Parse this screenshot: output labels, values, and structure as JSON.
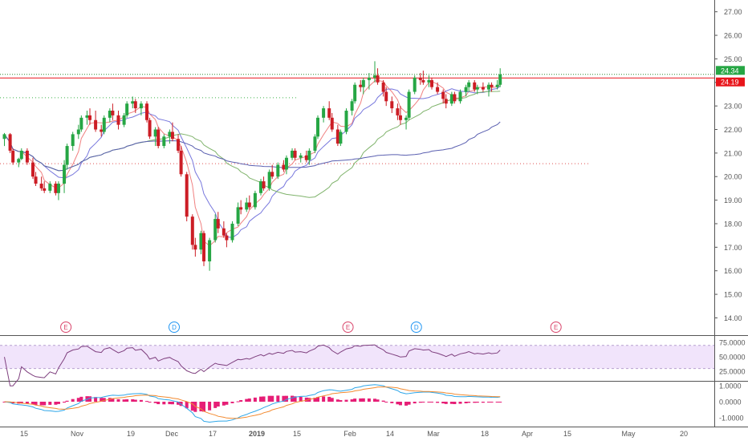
{
  "chart_data": {
    "type": "candlestick",
    "price_axis": {
      "ylim": [
        13.3,
        27.5
      ],
      "tick_values": [
        14,
        15,
        16,
        17,
        18,
        19,
        20,
        21,
        22,
        23,
        24,
        25,
        26,
        27
      ],
      "tick_labels": [
        "14.00",
        "15.00",
        "16.00",
        "17.00",
        "18.00",
        "19.00",
        "20.00",
        "21.00",
        "22.00",
        "23.00",
        "24.00",
        "25.00",
        "26.00",
        "27.00"
      ]
    },
    "price_labels": [
      {
        "text": "24.34",
        "value": 24.34,
        "color": "#26a644"
      },
      {
        "text": "24.19",
        "value": 24.19,
        "color": "#e8151b"
      }
    ],
    "time_axis": {
      "labels": [
        "15",
        "Nov",
        "19",
        "Dec",
        "17",
        "2019",
        "15",
        "Feb",
        "14",
        "Mar",
        "18",
        "Apr",
        "15",
        "May",
        "20"
      ]
    },
    "candles": [
      [
        21.6,
        21.85,
        21.3,
        21.8
      ],
      [
        21.8,
        21.85,
        21.0,
        21.1
      ],
      [
        21.1,
        21.2,
        20.5,
        20.6
      ],
      [
        20.6,
        20.8,
        20.4,
        20.75
      ],
      [
        20.75,
        21.2,
        20.7,
        21.1
      ],
      [
        21.1,
        21.2,
        20.5,
        20.6
      ],
      [
        20.6,
        20.8,
        19.9,
        20.0
      ],
      [
        20.0,
        20.2,
        19.6,
        19.7
      ],
      [
        19.7,
        20.0,
        19.4,
        19.5
      ],
      [
        19.5,
        19.8,
        19.3,
        19.4
      ],
      [
        19.4,
        19.8,
        19.3,
        19.7
      ],
      [
        19.7,
        19.8,
        19.2,
        19.3
      ],
      [
        19.3,
        19.8,
        19.0,
        19.7
      ],
      [
        19.7,
        20.7,
        19.3,
        20.5
      ],
      [
        20.5,
        21.4,
        20.3,
        21.3
      ],
      [
        21.3,
        21.9,
        21.1,
        21.8
      ],
      [
        21.8,
        22.2,
        21.6,
        22.0
      ],
      [
        22.0,
        22.6,
        21.9,
        22.5
      ],
      [
        22.5,
        22.8,
        22.2,
        22.6
      ],
      [
        22.6,
        22.9,
        22.2,
        22.4
      ],
      [
        22.4,
        22.8,
        21.9,
        22.0
      ],
      [
        22.0,
        22.2,
        21.7,
        21.9
      ],
      [
        21.9,
        22.6,
        21.8,
        22.5
      ],
      [
        22.5,
        22.9,
        22.3,
        22.8
      ],
      [
        22.8,
        23.1,
        22.4,
        22.6
      ],
      [
        22.6,
        22.8,
        22.0,
        22.2
      ],
      [
        22.2,
        22.7,
        22.1,
        22.6
      ],
      [
        22.6,
        23.2,
        22.5,
        23.1
      ],
      [
        23.1,
        23.4,
        22.9,
        23.2
      ],
      [
        23.2,
        23.3,
        22.7,
        22.9
      ],
      [
        22.9,
        23.2,
        22.6,
        23.1
      ],
      [
        23.1,
        23.2,
        22.3,
        22.4
      ],
      [
        22.4,
        22.5,
        21.6,
        21.7
      ],
      [
        21.7,
        22.1,
        21.3,
        22.0
      ],
      [
        22.0,
        22.1,
        21.2,
        21.3
      ],
      [
        21.3,
        21.8,
        21.2,
        21.7
      ],
      [
        21.7,
        22.0,
        21.4,
        21.9
      ],
      [
        21.9,
        22.3,
        21.5,
        21.6
      ],
      [
        21.6,
        21.8,
        21.0,
        21.1
      ],
      [
        21.1,
        21.3,
        20.0,
        20.1
      ],
      [
        20.1,
        20.2,
        18.1,
        18.3
      ],
      [
        18.3,
        18.4,
        16.9,
        17.1
      ],
      [
        17.1,
        17.4,
        16.6,
        16.9
      ],
      [
        16.9,
        17.7,
        16.7,
        17.6
      ],
      [
        17.6,
        17.7,
        16.2,
        16.4
      ],
      [
        16.4,
        17.4,
        16.0,
        17.3
      ],
      [
        17.3,
        18.4,
        17.2,
        18.2
      ],
      [
        18.2,
        18.5,
        17.6,
        17.8
      ],
      [
        17.8,
        18.1,
        17.4,
        17.5
      ],
      [
        17.5,
        17.6,
        17.0,
        17.3
      ],
      [
        17.3,
        18.1,
        17.2,
        18.0
      ],
      [
        18.0,
        18.9,
        17.9,
        18.7
      ],
      [
        18.7,
        19.0,
        18.4,
        18.6
      ],
      [
        18.6,
        19.1,
        18.5,
        18.9
      ],
      [
        18.9,
        19.2,
        18.6,
        18.7
      ],
      [
        18.7,
        19.4,
        18.6,
        19.3
      ],
      [
        19.3,
        19.9,
        19.2,
        19.8
      ],
      [
        19.8,
        20.0,
        19.4,
        19.5
      ],
      [
        19.5,
        20.3,
        19.4,
        20.2
      ],
      [
        20.2,
        20.5,
        19.9,
        20.0
      ],
      [
        20.0,
        20.6,
        19.9,
        20.5
      ],
      [
        20.5,
        20.7,
        20.2,
        20.3
      ],
      [
        20.3,
        20.9,
        20.1,
        20.8
      ],
      [
        20.8,
        21.2,
        20.7,
        21.1
      ],
      [
        21.1,
        21.2,
        20.7,
        20.8
      ],
      [
        20.8,
        21.0,
        20.6,
        20.9
      ],
      [
        20.9,
        21.1,
        20.6,
        20.7
      ],
      [
        20.7,
        21.2,
        20.5,
        21.1
      ],
      [
        21.1,
        21.8,
        21.0,
        21.7
      ],
      [
        21.7,
        22.6,
        21.6,
        22.5
      ],
      [
        22.5,
        23.0,
        22.3,
        22.9
      ],
      [
        22.9,
        23.2,
        22.4,
        22.5
      ],
      [
        22.5,
        22.7,
        21.9,
        22.0
      ],
      [
        22.0,
        22.2,
        21.3,
        21.4
      ],
      [
        21.4,
        22.0,
        21.3,
        21.9
      ],
      [
        21.9,
        22.9,
        21.8,
        22.8
      ],
      [
        22.8,
        23.3,
        22.6,
        23.2
      ],
      [
        23.2,
        24.0,
        23.1,
        23.9
      ],
      [
        23.9,
        24.1,
        23.6,
        23.8
      ],
      [
        23.8,
        24.2,
        23.5,
        24.1
      ],
      [
        24.1,
        24.4,
        23.7,
        24.2
      ],
      [
        24.2,
        24.9,
        24.0,
        24.3
      ],
      [
        24.3,
        24.6,
        23.9,
        24.0
      ],
      [
        24.0,
        24.1,
        23.4,
        23.6
      ],
      [
        23.6,
        23.8,
        23.0,
        23.2
      ],
      [
        23.2,
        23.4,
        22.7,
        22.9
      ],
      [
        22.9,
        23.1,
        22.4,
        22.6
      ],
      [
        22.6,
        23.0,
        22.2,
        22.4
      ],
      [
        22.4,
        22.6,
        22.0,
        22.5
      ],
      [
        22.5,
        23.7,
        22.4,
        23.6
      ],
      [
        23.6,
        24.3,
        23.5,
        24.2
      ],
      [
        24.2,
        24.4,
        23.9,
        24.1
      ],
      [
        24.1,
        24.5,
        23.9,
        24.0
      ],
      [
        24.0,
        24.3,
        23.8,
        24.1
      ],
      [
        24.1,
        24.2,
        23.7,
        23.8
      ],
      [
        23.8,
        24.0,
        23.5,
        23.6
      ],
      [
        23.6,
        23.7,
        23.1,
        23.3
      ],
      [
        23.3,
        23.5,
        22.9,
        23.1
      ],
      [
        23.1,
        23.6,
        23.0,
        23.5
      ],
      [
        23.5,
        23.6,
        23.1,
        23.2
      ],
      [
        23.2,
        23.7,
        23.1,
        23.6
      ],
      [
        23.6,
        23.9,
        23.4,
        23.8
      ],
      [
        23.8,
        24.1,
        23.6,
        24.0
      ],
      [
        24.0,
        24.1,
        23.6,
        23.7
      ],
      [
        23.7,
        23.9,
        23.5,
        23.8
      ],
      [
        23.8,
        24.0,
        23.6,
        23.7
      ],
      [
        23.7,
        24.0,
        23.4,
        23.9
      ],
      [
        23.9,
        24.0,
        23.6,
        23.8
      ],
      [
        23.8,
        24.1,
        23.7,
        23.9
      ],
      [
        23.9,
        24.6,
        23.8,
        24.34
      ]
    ],
    "earnings_markers": [
      {
        "letter": "E",
        "slot": 22,
        "color": "#d9456b"
      },
      {
        "letter": "D",
        "slot": 60,
        "color": "#2196f3"
      },
      {
        "letter": "E",
        "slot": 121,
        "color": "#d9456b"
      },
      {
        "letter": "D",
        "slot": 145,
        "color": "#2196f3"
      },
      {
        "letter": "E",
        "slot": 194,
        "color": "#d9456b"
      }
    ],
    "rsi_axis": {
      "ylim": [
        10,
        85
      ],
      "tick_values": [
        25,
        50,
        75
      ],
      "tick_labels": [
        "25.0000",
        "50.0000",
        "75.0000"
      ],
      "band": [
        30,
        70
      ]
    },
    "macd_axis": {
      "ylim": [
        -1.5,
        1.2
      ],
      "tick_values": [
        1.0,
        0.0,
        -1.0
      ],
      "tick_labels": [
        "1.0000",
        "0.0000",
        "-1.0000"
      ]
    },
    "colors": {
      "up": "#26a644",
      "down": "#cc1d25",
      "ma_fast": "#f08080",
      "ma_mid": "#7777dd",
      "ma_slow": "#7fb36b",
      "ma_long": "#5a5fb0",
      "rsi_line": "#7e3f7e",
      "rsi_band": "#f1e4fb",
      "macd_line": "#2ea6e8",
      "signal_line": "#f28a30",
      "histogram": "#e61e76",
      "support": "#e8151b",
      "resistance": "#2e8b2e"
    }
  }
}
